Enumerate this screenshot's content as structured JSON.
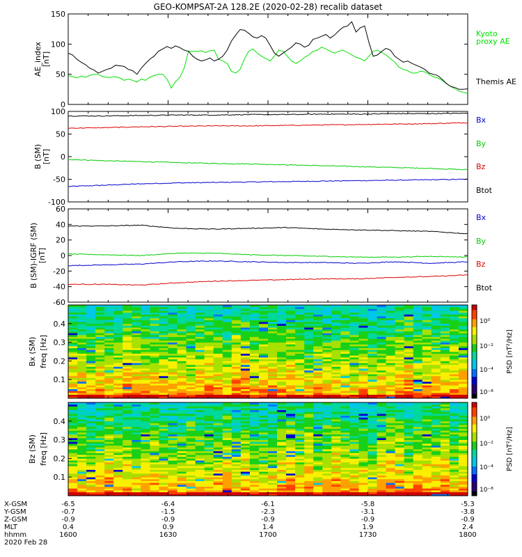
{
  "title": "GEO-KOMPSAT-2A 128.2E (2020-02-28) recalib dataset",
  "chart_data": [
    {
      "type": "line",
      "ylabel": "AE_index",
      "yunit": "[nT]",
      "ylim": [
        0,
        150
      ],
      "yticks": [
        0,
        50,
        100,
        150
      ],
      "time": [
        "16:00",
        "18:00"
      ],
      "series": [
        {
          "name": "Kyoto proxy AE",
          "color": "#00e000",
          "values": [
            48,
            46,
            44,
            47,
            45,
            48,
            50,
            50,
            46,
            45,
            45,
            46,
            44,
            40,
            42,
            40,
            37,
            42,
            40,
            45,
            48,
            50,
            50,
            42,
            27,
            38,
            45,
            60,
            88,
            88,
            88,
            89,
            86,
            89,
            90,
            75,
            72,
            68,
            55,
            52,
            58,
            75,
            88,
            92,
            85,
            80,
            76,
            72,
            80,
            90,
            88,
            80,
            72,
            68,
            72,
            78,
            82,
            88,
            90,
            95,
            92,
            88,
            85,
            88,
            90,
            86,
            82,
            78,
            76,
            72,
            80,
            88,
            90,
            86,
            82,
            76,
            70,
            62,
            58,
            56,
            52,
            52,
            55,
            54,
            50,
            46,
            44,
            40,
            35,
            30,
            26,
            22,
            20,
            18
          ]
        },
        {
          "name": "Themis AE",
          "color": "#000000",
          "values": [
            85,
            82,
            75,
            70,
            66,
            60,
            57,
            52,
            55,
            58,
            60,
            65,
            64,
            63,
            58,
            56,
            50,
            60,
            68,
            75,
            80,
            88,
            92,
            96,
            93,
            97,
            94,
            90,
            88,
            80,
            75,
            72,
            74,
            77,
            72,
            75,
            80,
            90,
            105,
            115,
            124,
            123,
            118,
            112,
            110,
            114,
            110,
            98,
            85,
            80,
            85,
            90,
            95,
            102,
            100,
            95,
            98,
            108,
            110,
            113,
            116,
            110,
            115,
            122,
            128,
            130,
            137,
            120,
            127,
            130,
            103,
            80,
            82,
            88,
            93,
            90,
            80,
            75,
            70,
            72,
            68,
            65,
            62,
            58,
            52,
            50,
            48,
            42,
            35,
            30,
            28,
            25,
            25,
            26
          ]
        }
      ],
      "legend": [
        {
          "label": "Kyoto",
          "color": "#00e000"
        },
        {
          "label": "proxy AE",
          "color": "#00e000"
        },
        {
          "label": "Themis AE",
          "color": "#000000"
        }
      ]
    },
    {
      "type": "line",
      "ylabel": "B (SM)",
      "yunit": "[nT]",
      "ylim": [
        -100,
        100
      ],
      "yticks": [
        -100,
        -50,
        0,
        50,
        100
      ],
      "time": [
        "16:00",
        "18:00"
      ],
      "series": [
        {
          "name": "Bx",
          "color": "#0000cc",
          "values": [
            -66,
            -63,
            -60,
            -58,
            -57,
            -56,
            -55,
            -54,
            -53,
            -52,
            -51,
            -50
          ]
        },
        {
          "name": "By",
          "color": "#00cc00",
          "values": [
            -6,
            -9,
            -11,
            -13,
            -15,
            -16,
            -18,
            -20,
            -22,
            -24,
            -26,
            -29
          ]
        },
        {
          "name": "Bz",
          "color": "#dd0000",
          "values": [
            63,
            64,
            66,
            67,
            68,
            68,
            69,
            70,
            71,
            72,
            73,
            75
          ]
        },
        {
          "name": "Btot",
          "color": "#000000",
          "values": [
            90,
            90,
            91,
            92,
            92,
            93,
            93,
            94,
            94,
            95,
            95,
            96
          ]
        }
      ],
      "legend": [
        {
          "label": "Bx",
          "color": "#0000cc"
        },
        {
          "label": "By",
          "color": "#00cc00"
        },
        {
          "label": "Bz",
          "color": "#dd0000"
        },
        {
          "label": "Btot",
          "color": "#000000"
        }
      ]
    },
    {
      "type": "line",
      "ylabel": "B (SM)-IGRF (SM)",
      "yunit": "[nT]",
      "ylim": [
        -60,
        60
      ],
      "yticks": [
        -60,
        -40,
        -20,
        0,
        20,
        40,
        60
      ],
      "time": [
        "16:00",
        "18:00"
      ],
      "series": [
        {
          "name": "Bx",
          "color": "#0000cc",
          "values": [
            -13,
            -12,
            -11,
            -8,
            -7,
            -8,
            -9,
            -9,
            -10,
            -8,
            -10,
            -8
          ]
        },
        {
          "name": "By",
          "color": "#00cc00",
          "values": [
            2,
            1,
            0,
            3,
            3,
            1,
            0,
            -1,
            -2,
            -2,
            -1,
            -2
          ]
        },
        {
          "name": "Bz",
          "color": "#dd0000",
          "values": [
            -37,
            -37,
            -38,
            -35,
            -33,
            -32,
            -31,
            -30,
            -30,
            -28,
            -27,
            -25
          ]
        },
        {
          "name": "Btot",
          "color": "#000000",
          "values": [
            38,
            38,
            39,
            35,
            34,
            35,
            36,
            34,
            33,
            32,
            31,
            28
          ]
        }
      ],
      "legend": [
        {
          "label": "Bx",
          "color": "#0000cc"
        },
        {
          "label": "By",
          "color": "#00cc00"
        },
        {
          "label": "Bz",
          "color": "#dd0000"
        },
        {
          "label": "Btot",
          "color": "#000000"
        }
      ]
    },
    {
      "type": "heatmap",
      "ylabel": "Bx (SM)",
      "ylabel2": "freq [Hz]",
      "ylim": [
        0,
        0.5
      ],
      "yticks": [
        "0.1",
        "0.2",
        "0.3",
        "0.4"
      ],
      "colorbar": {
        "label": "PSD [nT²/Hz]",
        "ticks": [
          "10⁰",
          "10⁻²",
          "10⁻⁴",
          "10⁻⁸"
        ],
        "colors": [
          "#000000",
          "#2a0070",
          "#0000d0",
          "#0070ff",
          "#00c8e6",
          "#00d89c",
          "#18d018",
          "#a8e000",
          "#f8f000",
          "#ffa000",
          "#ff4000",
          "#d00000"
        ]
      }
    },
    {
      "type": "heatmap",
      "ylabel": "Bz (SM)",
      "ylabel2": "freq [Hz]",
      "ylim": [
        0,
        0.5
      ],
      "yticks": [
        "0.1",
        "0.2",
        "0.3",
        "0.4"
      ],
      "colorbar": {
        "label": "PSD [nT²/Hz]",
        "ticks": [
          "10⁰",
          "10⁻²",
          "10⁻⁴",
          "10⁻⁸"
        ],
        "colors": [
          "#000000",
          "#2a0070",
          "#0000d0",
          "#0070ff",
          "#00c8e6",
          "#00d89c",
          "#18d018",
          "#a8e000",
          "#f8f000",
          "#ffa000",
          "#ff4000",
          "#d00000"
        ]
      }
    }
  ],
  "orbit_table": {
    "labels": [
      "X-GSM",
      "Y-GSM",
      "Z-GSM",
      "MLT",
      "hhmm",
      "2020 Feb 28"
    ],
    "columns": [
      [
        "-6.5",
        "-0.7",
        "-0.9",
        "0.4",
        "1600"
      ],
      [
        "-6.4",
        "-1.5",
        "-0.9",
        "0.9",
        "1630"
      ],
      [
        "-6.1",
        "-2.3",
        "-0.9",
        "1.4",
        "1700"
      ],
      [
        "-5.8",
        "-3.1",
        "-0.9",
        "1.9",
        "1730"
      ],
      [
        "-5.3",
        "-3.8",
        "-0.9",
        "2.4",
        "1800"
      ]
    ]
  }
}
